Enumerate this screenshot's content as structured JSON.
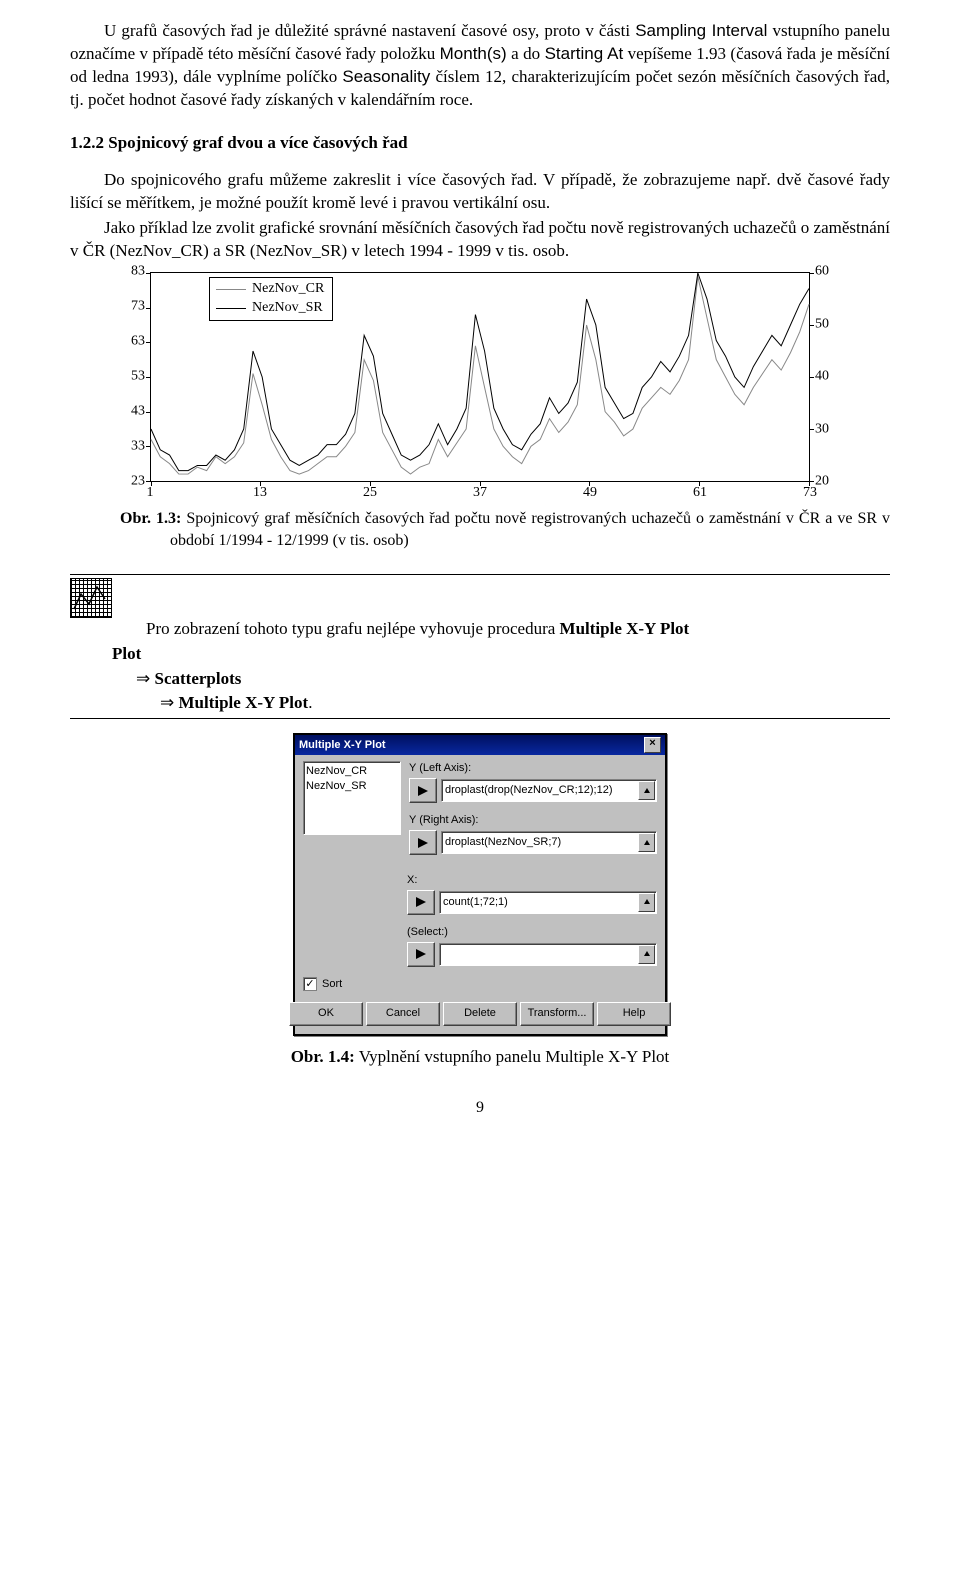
{
  "para1_pre": "U grafů časových řad je důležité správné nastavení časové osy, proto v části ",
  "para1_sampling": "Sampling Interval",
  "para1_mid1": " vstupního panelu označíme v případě této měsíční časové řady položku ",
  "para1_months": "Month(s)",
  "para1_mid2": " a do ",
  "para1_starting": "Starting At",
  "para1_mid3": " vepíšeme 1.93 (časová řada je měsíční od ledna 1993), dále vyplníme políčko ",
  "para1_season": "Seasonality",
  "para1_end": " číslem 12, charakterizujícím počet sezón měsíčních časových řad, tj. počet hodnot časové řady získaných v kalendářním roce.",
  "h_1_2_2": "1.2.2 Spojnicový graf dvou a více časových řad",
  "para2": "Do spojnicového grafu můžeme zakreslit i více časových řad. V případě, že zobrazujeme např. dvě časové řady lišící se měřítkem, je možné použít kromě levé i pravou vertikální osu.",
  "para3": "Jako příklad lze zvolit grafické srovnání měsíčních časových řad počtu nově registrovaných uchazečů o zaměstnání v ČR (NezNov_CR) a SR (NezNov_SR) v letech 1994 - 1999 v tis. osob.",
  "chart": {
    "series_cr_label": "NezNov_CR",
    "series_sr_label": "NezNov_SR",
    "y_left": {
      "min": 23,
      "max": 83,
      "step": 10,
      "ticks": [
        23,
        33,
        43,
        53,
        63,
        73,
        83
      ]
    },
    "y_right": {
      "min": 20,
      "max": 60,
      "step": 10,
      "ticks": [
        20,
        30,
        40,
        50,
        60
      ]
    },
    "x": {
      "min": 1,
      "max": 73,
      "ticks": [
        1,
        13,
        25,
        37,
        49,
        61,
        73
      ]
    },
    "series_cr_color": "#888888",
    "series_sr_color": "#000000",
    "background": "#ffffff",
    "cr": [
      35,
      30,
      28,
      25,
      25,
      27,
      26,
      30,
      28,
      30,
      34,
      54,
      45,
      35,
      30,
      26,
      25,
      26,
      28,
      30,
      30,
      33,
      37,
      58,
      52,
      37,
      32,
      27,
      25,
      27,
      28,
      35,
      30,
      34,
      38,
      62,
      50,
      38,
      33,
      30,
      28,
      33,
      35,
      41,
      37,
      40,
      45,
      68,
      58,
      43,
      40,
      36,
      38,
      44,
      47,
      50,
      48,
      52,
      58,
      82,
      70,
      58,
      53,
      48,
      45,
      50,
      54,
      58,
      55,
      60,
      66,
      74
    ],
    "sr": [
      30,
      26,
      25,
      22,
      22,
      23,
      23,
      25,
      24,
      26,
      30,
      45,
      40,
      30,
      27,
      24,
      23,
      24,
      25,
      27,
      27,
      29,
      33,
      48,
      44,
      33,
      29,
      25,
      24,
      25,
      27,
      31,
      27,
      30,
      34,
      52,
      45,
      34,
      30,
      27,
      26,
      29,
      31,
      36,
      33,
      35,
      39,
      55,
      50,
      38,
      35,
      32,
      33,
      38,
      40,
      43,
      41,
      44,
      48,
      60,
      55,
      47,
      44,
      40,
      38,
      42,
      45,
      48,
      46,
      50,
      54,
      57
    ]
  },
  "fig13_label": "Obr. 1.3:",
  "fig13_text": " Spojnicový graf měsíčních časových řad počtu nově registrovaných uchazečů o zaměstnání v ČR a ve SR v období 1/1994 - 12/1999 (v tis. osob)",
  "proc_intro": "Pro zobrazení tohoto typu grafu nejlépe vyhovuje procedura ",
  "proc_mxypl": "Multiple X-Y Plot",
  "proc_plot": "Plot",
  "proc_scatter": "Scatterplots",
  "proc_mxy2": "Multiple X-Y Plot",
  "dialog": {
    "title": "Multiple X-Y Plot",
    "list": [
      "NezNov_CR",
      "NezNov_SR"
    ],
    "yleft_label": "Y (Left Axis):",
    "yleft_value": "droplast(drop(NezNov_CR;12);12)",
    "yright_label": "Y (Right Axis):",
    "yright_value": "droplast(NezNov_SR;7)",
    "x_label": "X:",
    "x_value": "count(1;72;1)",
    "select_label": "(Select:)",
    "select_value": "",
    "sort_label": "Sort",
    "buttons": [
      "OK",
      "Cancel",
      "Delete",
      "Transform...",
      "Help"
    ]
  },
  "fig14_label": "Obr. 1.4:",
  "fig14_text": " Vyplnění vstupního panelu Multiple X-Y Plot",
  "page_number": "9"
}
